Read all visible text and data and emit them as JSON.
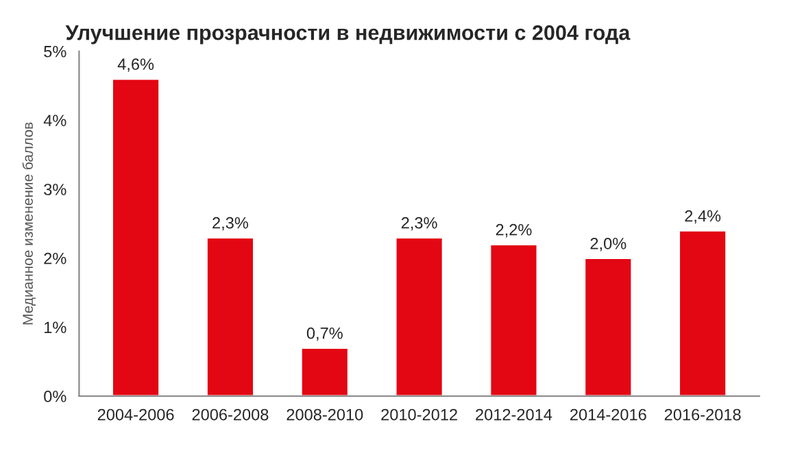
{
  "chart_data": {
    "type": "bar",
    "title": "Улучшение прозрачности в недвижимости с 2004 года",
    "ylabel": "Медианное изменение баллов",
    "categories": [
      "2004-2006",
      "2006-2008",
      "2008-2010",
      "2010-2012",
      "2012-2014",
      "2014-2016",
      "2016-2018"
    ],
    "values": [
      4.6,
      2.3,
      0.7,
      2.3,
      2.2,
      2.0,
      2.4
    ],
    "value_labels": [
      "4,6%",
      "2,3%",
      "0,7%",
      "2,3%",
      "2,2%",
      "2,0%",
      "2,4%"
    ],
    "color": "#e30613",
    "ylim": [
      0,
      5
    ],
    "yticks": [
      {
        "value": 0,
        "label": "0%"
      },
      {
        "value": 1,
        "label": "1%"
      },
      {
        "value": 2,
        "label": "2%"
      },
      {
        "value": 3,
        "label": "3%"
      },
      {
        "value": 4,
        "label": "4%"
      },
      {
        "value": 5,
        "label": "5%"
      }
    ],
    "grid": false
  }
}
